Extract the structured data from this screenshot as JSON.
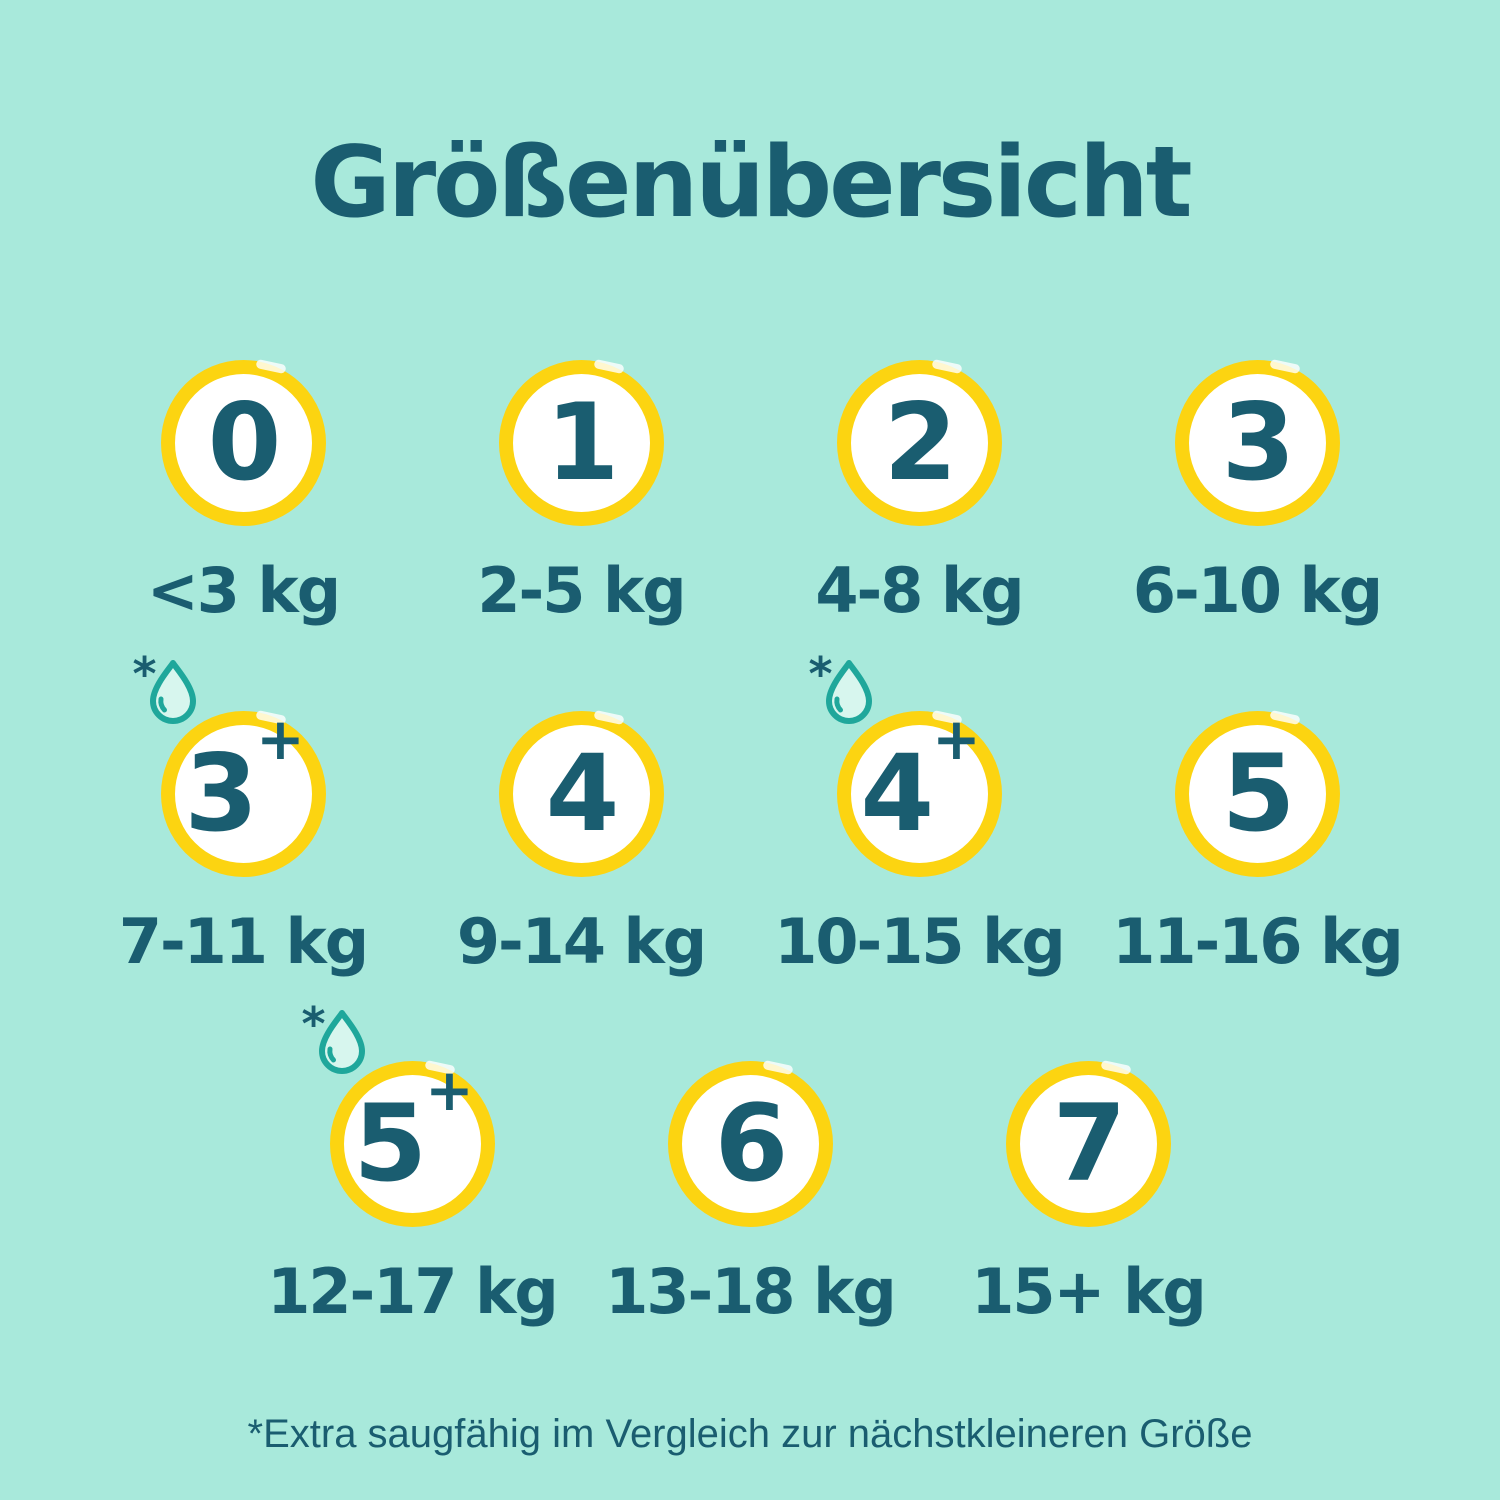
{
  "title": "Größenübersicht",
  "footnote": "*Extra saugfähig im Vergleich zur nächstkleineren Größe",
  "asterisk_symbol": "*",
  "colors": {
    "background": "#a8e9db",
    "text": "#1a5d70",
    "circle_ring": "#fcd411",
    "circle_fill": "#ffffff",
    "droplet_stroke": "#1fa79b",
    "droplet_fill": "#d7f6ee"
  },
  "rows": [
    {
      "items": [
        {
          "size": "0",
          "weight": "<3 kg",
          "extra_absorbent": false
        },
        {
          "size": "1",
          "weight": "2-5 kg",
          "extra_absorbent": false
        },
        {
          "size": "2",
          "weight": "4-8 kg",
          "extra_absorbent": false
        },
        {
          "size": "3",
          "weight": "6-10 kg",
          "extra_absorbent": false
        }
      ]
    },
    {
      "items": [
        {
          "size": "3+",
          "weight": "7-11 kg",
          "extra_absorbent": true
        },
        {
          "size": "4",
          "weight": "9-14 kg",
          "extra_absorbent": false
        },
        {
          "size": "4+",
          "weight": "10-15 kg",
          "extra_absorbent": true
        },
        {
          "size": "5",
          "weight": "11-16 kg",
          "extra_absorbent": false
        }
      ]
    },
    {
      "items": [
        {
          "size": "5+",
          "weight": "12-17 kg",
          "extra_absorbent": true
        },
        {
          "size": "6",
          "weight": "13-18 kg",
          "extra_absorbent": false
        },
        {
          "size": "7",
          "weight": "15+ kg",
          "extra_absorbent": false
        }
      ]
    }
  ]
}
